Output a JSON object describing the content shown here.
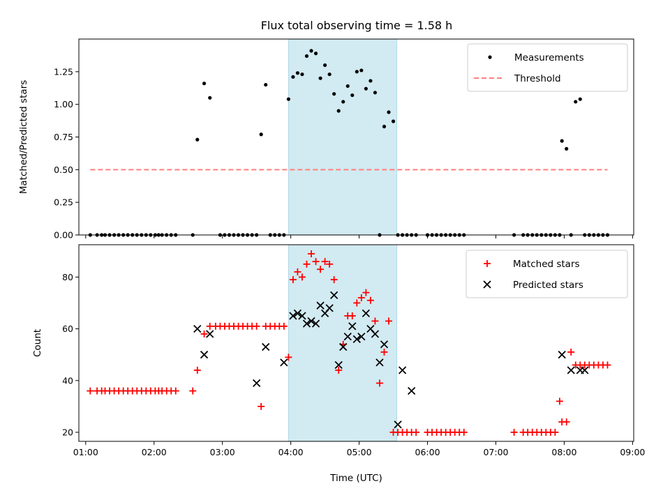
{
  "chart_data": [
    {
      "type": "scatter",
      "title": "Flux total observing time = 1.58 h",
      "xlabel": "",
      "ylabel": "Matched/Predicted stars",
      "xlim": [
        "00:54",
        "09:01"
      ],
      "ylim": [
        0,
        1.5
      ],
      "yticks": [
        0,
        0.25,
        0.5,
        0.75,
        1.0,
        1.25
      ],
      "ytick_labels": [
        "0.00",
        "0.25",
        "0.50",
        "0.75",
        "1.00",
        "1.25"
      ],
      "legend_position": "top-right",
      "shaded_region": {
        "start": "03:58",
        "end": "05:33",
        "color": "#add8e6"
      },
      "colors": {
        "measurements": "#000000",
        "threshold": "#ff7f7f"
      },
      "series": [
        {
          "name": "Measurements",
          "marker": "dot",
          "x": [
            "01:04",
            "01:10",
            "01:14",
            "01:17",
            "01:21",
            "01:25",
            "01:29",
            "01:33",
            "01:37",
            "01:41",
            "01:45",
            "01:49",
            "01:53",
            "01:57",
            "02:01",
            "02:04",
            "02:07",
            "02:11",
            "02:15",
            "02:19",
            "02:34",
            "02:38",
            "02:44",
            "02:49",
            "02:58",
            "03:02",
            "03:06",
            "03:10",
            "03:14",
            "03:18",
            "03:22",
            "03:26",
            "03:30",
            "03:34",
            "03:38",
            "03:42",
            "03:46",
            "03:50",
            "03:54",
            "03:58",
            "04:02",
            "04:06",
            "04:10",
            "04:14",
            "04:18",
            "04:22",
            "04:26",
            "04:30",
            "04:34",
            "04:38",
            "04:42",
            "04:46",
            "04:50",
            "04:54",
            "04:58",
            "05:02",
            "05:06",
            "05:10",
            "05:14",
            "05:18",
            "05:22",
            "05:26",
            "05:30",
            "05:34",
            "05:38",
            "05:42",
            "05:46",
            "05:50",
            "06:00",
            "06:04",
            "06:08",
            "06:12",
            "06:16",
            "06:20",
            "06:24",
            "06:28",
            "06:32",
            "07:16",
            "07:24",
            "07:28",
            "07:32",
            "07:36",
            "07:40",
            "07:44",
            "07:48",
            "07:52",
            "07:56",
            "07:58",
            "08:02",
            "08:06",
            "08:10",
            "08:14",
            "08:18",
            "08:22",
            "08:26",
            "08:30",
            "08:34",
            "08:38"
          ],
          "y": [
            0,
            0,
            0,
            0,
            0,
            0,
            0,
            0,
            0,
            0,
            0,
            0,
            0,
            0,
            0,
            0,
            0,
            0,
            0,
            0,
            0,
            0.73,
            1.16,
            1.05,
            0,
            0,
            0,
            0,
            0,
            0,
            0,
            0,
            0,
            0.77,
            1.15,
            0,
            0,
            0,
            0,
            1.04,
            1.21,
            1.24,
            1.23,
            1.37,
            1.41,
            1.39,
            1.2,
            1.3,
            1.23,
            1.08,
            0.95,
            1.02,
            1.14,
            1.07,
            1.25,
            1.26,
            1.12,
            1.18,
            1.09,
            0,
            0.83,
            0.94,
            0.87,
            0,
            0,
            0,
            0,
            0,
            0,
            0,
            0,
            0,
            0,
            0,
            0,
            0,
            0,
            0,
            0,
            0,
            0,
            0,
            0,
            0,
            0,
            0,
            0,
            0.72,
            0.66,
            0,
            1.02,
            1.04,
            0,
            0,
            0,
            0,
            0,
            0
          ]
        },
        {
          "name": "Threshold",
          "style": "dashed",
          "x": [
            "01:04",
            "08:38"
          ],
          "y": [
            0.5,
            0.5
          ]
        }
      ]
    },
    {
      "type": "scatter",
      "title": "",
      "xlabel": "Time (UTC)",
      "ylabel": "Count",
      "xlim": [
        "00:54",
        "09:01"
      ],
      "ylim": [
        16.5,
        92.5
      ],
      "yticks": [
        20,
        40,
        60,
        80
      ],
      "ytick_labels": [
        "20",
        "40",
        "60",
        "80"
      ],
      "xticks": [
        "01:00",
        "02:00",
        "03:00",
        "04:00",
        "05:00",
        "06:00",
        "07:00",
        "08:00",
        "09:00"
      ],
      "xtick_labels": [
        "01:00",
        "02:00",
        "03:00",
        "04:00",
        "05:00",
        "06:00",
        "07:00",
        "08:00",
        "09:00"
      ],
      "legend_position": "top-right",
      "shaded_region": {
        "start": "03:58",
        "end": "05:33",
        "color": "#add8e6"
      },
      "colors": {
        "matched": "#ff0000",
        "predicted": "#000000"
      },
      "series": [
        {
          "name": "Matched stars",
          "marker": "plus",
          "x": [
            "01:04",
            "01:10",
            "01:14",
            "01:17",
            "01:21",
            "01:25",
            "01:29",
            "01:33",
            "01:37",
            "01:41",
            "01:45",
            "01:49",
            "01:53",
            "01:57",
            "02:01",
            "02:04",
            "02:07",
            "02:11",
            "02:15",
            "02:19",
            "02:34",
            "02:38",
            "02:44",
            "02:49",
            "02:54",
            "02:58",
            "03:02",
            "03:06",
            "03:10",
            "03:14",
            "03:18",
            "03:22",
            "03:26",
            "03:30",
            "03:34",
            "03:38",
            "03:42",
            "03:46",
            "03:50",
            "03:54",
            "03:58",
            "04:02",
            "04:06",
            "04:10",
            "04:14",
            "04:18",
            "04:22",
            "04:26",
            "04:30",
            "04:34",
            "04:38",
            "04:42",
            "04:46",
            "04:50",
            "04:54",
            "04:58",
            "05:02",
            "05:06",
            "05:10",
            "05:14",
            "05:18",
            "05:22",
            "05:26",
            "05:30",
            "05:34",
            "05:38",
            "05:42",
            "05:46",
            "05:50",
            "06:00",
            "06:04",
            "06:08",
            "06:12",
            "06:16",
            "06:20",
            "06:24",
            "06:28",
            "06:32",
            "07:16",
            "07:24",
            "07:28",
            "07:32",
            "07:36",
            "07:40",
            "07:44",
            "07:48",
            "07:52",
            "07:56",
            "07:58",
            "08:02",
            "08:06",
            "08:10",
            "08:14",
            "08:18",
            "08:22",
            "08:26",
            "08:30",
            "08:34",
            "08:38"
          ],
          "y": [
            36,
            36,
            36,
            36,
            36,
            36,
            36,
            36,
            36,
            36,
            36,
            36,
            36,
            36,
            36,
            36,
            36,
            36,
            36,
            36,
            36,
            44,
            58,
            61,
            61,
            61,
            61,
            61,
            61,
            61,
            61,
            61,
            61,
            61,
            30,
            61,
            61,
            61,
            61,
            61,
            49,
            79,
            82,
            80,
            85,
            89,
            86,
            83,
            86,
            85,
            79,
            44,
            54,
            65,
            65,
            70,
            72,
            74,
            71,
            63,
            39,
            51,
            63,
            20,
            20,
            20,
            20,
            20,
            20,
            20,
            20,
            20,
            20,
            20,
            20,
            20,
            20,
            20,
            20,
            20,
            20,
            20,
            20,
            20,
            20,
            20,
            20,
            32,
            24,
            24,
            51,
            46,
            46,
            46,
            46,
            46,
            46,
            46,
            46
          ]
        },
        {
          "name": "Predicted stars",
          "marker": "x",
          "x": [
            "02:38",
            "02:44",
            "02:49",
            "03:30",
            "03:38",
            "03:54",
            "04:02",
            "04:06",
            "04:10",
            "04:14",
            "04:18",
            "04:22",
            "04:26",
            "04:30",
            "04:34",
            "04:38",
            "04:42",
            "04:46",
            "04:50",
            "04:54",
            "04:58",
            "05:02",
            "05:06",
            "05:10",
            "05:14",
            "05:18",
            "05:22",
            "05:34",
            "05:38",
            "05:46",
            "07:58",
            "08:06",
            "08:14",
            "08:18"
          ],
          "y": [
            60,
            50,
            58,
            39,
            53,
            47,
            65,
            66,
            65,
            62,
            63,
            62,
            69,
            66,
            68,
            73,
            46,
            53,
            57,
            61,
            56,
            57,
            66,
            60,
            58,
            47,
            54,
            23,
            44,
            36,
            50,
            44,
            44,
            44
          ]
        }
      ]
    }
  ]
}
